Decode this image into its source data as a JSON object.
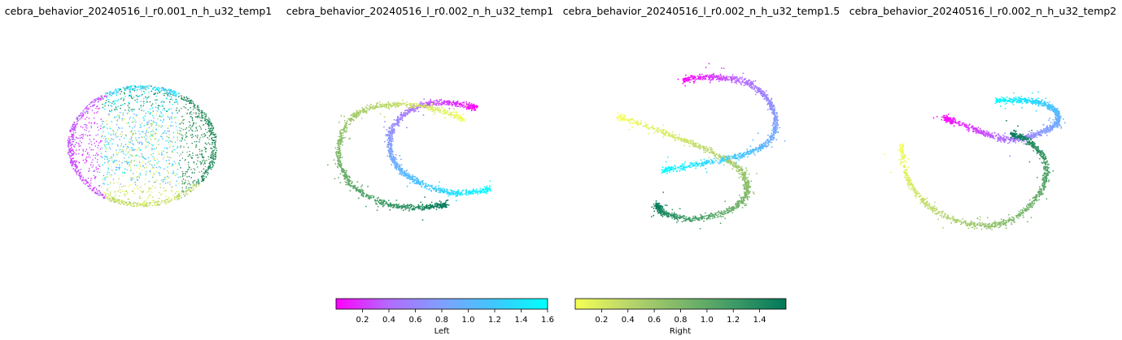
{
  "chart_data": [
    {
      "type": "scatter",
      "title": "cebra_behavior_20240516_l_r0.001_n_h_u32_temp1",
      "shape": "sphere"
    },
    {
      "type": "scatter",
      "title": "cebra_behavior_20240516_l_r0.002_n_h_u32_temp1",
      "shape": "two-arcs"
    },
    {
      "type": "scatter",
      "title": "cebra_behavior_20240516_l_r0.002_n_h_u32_temp1.5",
      "shape": "s-curve"
    },
    {
      "type": "scatter",
      "title": "cebra_behavior_20240516_l_r0.002_n_h_u32_temp2",
      "shape": "loop-hook"
    }
  ],
  "colorbars": {
    "left": {
      "label": "Left",
      "range": [
        0,
        1.6
      ],
      "ticks": [
        "0.2",
        "0.4",
        "0.6",
        "0.8",
        "1.0",
        "1.2",
        "1.4",
        "1.6"
      ],
      "tick_values": [
        0.2,
        0.4,
        0.6,
        0.8,
        1.0,
        1.2,
        1.4,
        1.6
      ],
      "colors": [
        "#ff00ff",
        "#b26bff",
        "#7fa0ff",
        "#3ec8ff",
        "#00ffff"
      ]
    },
    "right": {
      "label": "Right",
      "range": [
        0,
        1.6
      ],
      "ticks": [
        "0.2",
        "0.4",
        "0.6",
        "0.8",
        "1.0",
        "1.2",
        "1.4"
      ],
      "tick_values": [
        0.2,
        0.4,
        0.6,
        0.8,
        1.0,
        1.2,
        1.4
      ],
      "colors": [
        "#f5ff55",
        "#b9d66a",
        "#7fb86a",
        "#3f9b66",
        "#00785a"
      ]
    }
  }
}
